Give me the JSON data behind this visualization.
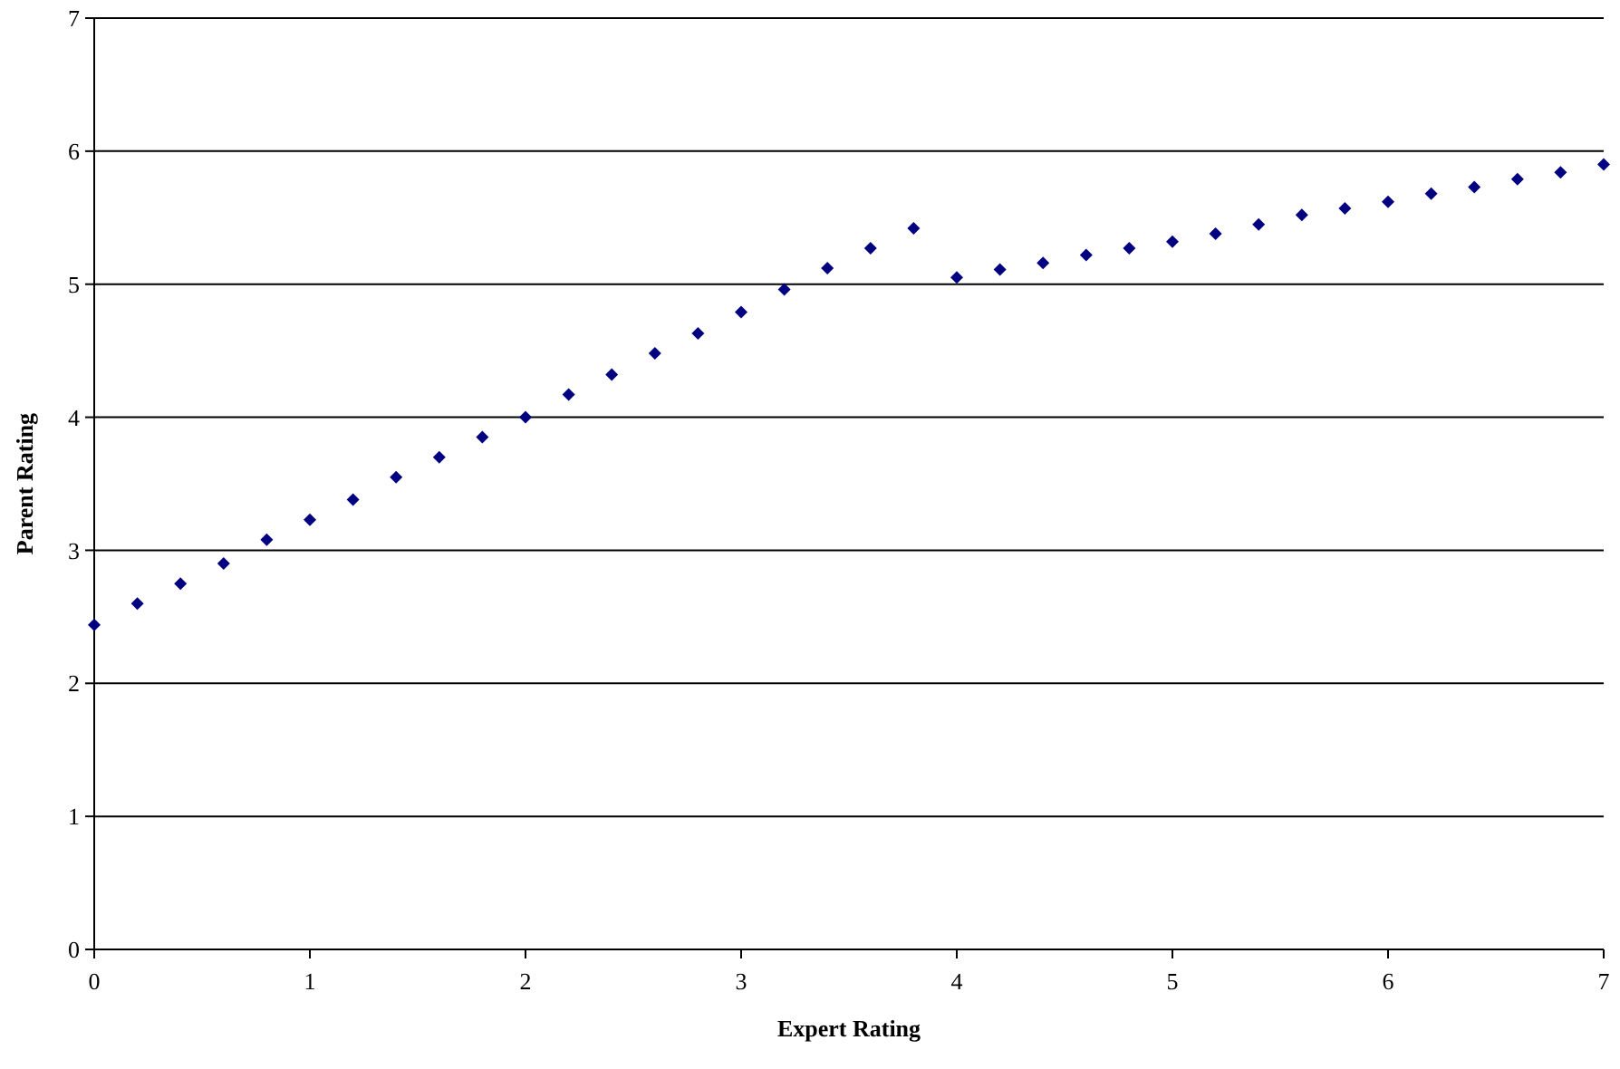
{
  "chart_data": {
    "type": "scatter",
    "xlabel": "Expert Rating",
    "ylabel": "Parent Rating",
    "x": [
      0,
      0.2,
      0.4,
      0.6,
      0.8,
      1,
      1.2,
      1.4,
      1.6,
      1.8,
      2,
      2.2,
      2.4,
      2.6,
      2.8,
      3,
      3.2,
      3.4,
      3.6,
      3.8,
      4,
      4.2,
      4.4,
      4.6,
      4.8,
      5,
      5.2,
      5.4,
      5.6,
      5.8,
      6,
      6.2,
      6.4,
      6.6,
      6.8,
      7
    ],
    "series": [
      {
        "color": "#000080",
        "values": [
          2.44,
          2.6,
          2.75,
          2.9,
          3.08,
          3.23,
          3.38,
          3.55,
          3.7,
          3.85,
          4,
          4.17,
          4.32,
          4.48,
          4.63,
          4.79,
          4.96,
          5.12,
          5.27,
          5.42,
          5.05,
          5.11,
          5.16,
          5.22,
          5.27,
          5.32,
          5.38,
          5.45,
          5.52,
          5.57,
          5.62,
          5.68,
          5.73,
          5.79,
          5.84,
          5.9
        ]
      }
    ],
    "xlim": [
      0,
      7
    ],
    "xticks": [
      0,
      1,
      2,
      3,
      4,
      5,
      6,
      7
    ],
    "ylim": [
      0,
      7
    ],
    "yticks": [
      0,
      1,
      2,
      3,
      4,
      5,
      6,
      7
    ],
    "grid": "y",
    "marker": "diamond"
  }
}
